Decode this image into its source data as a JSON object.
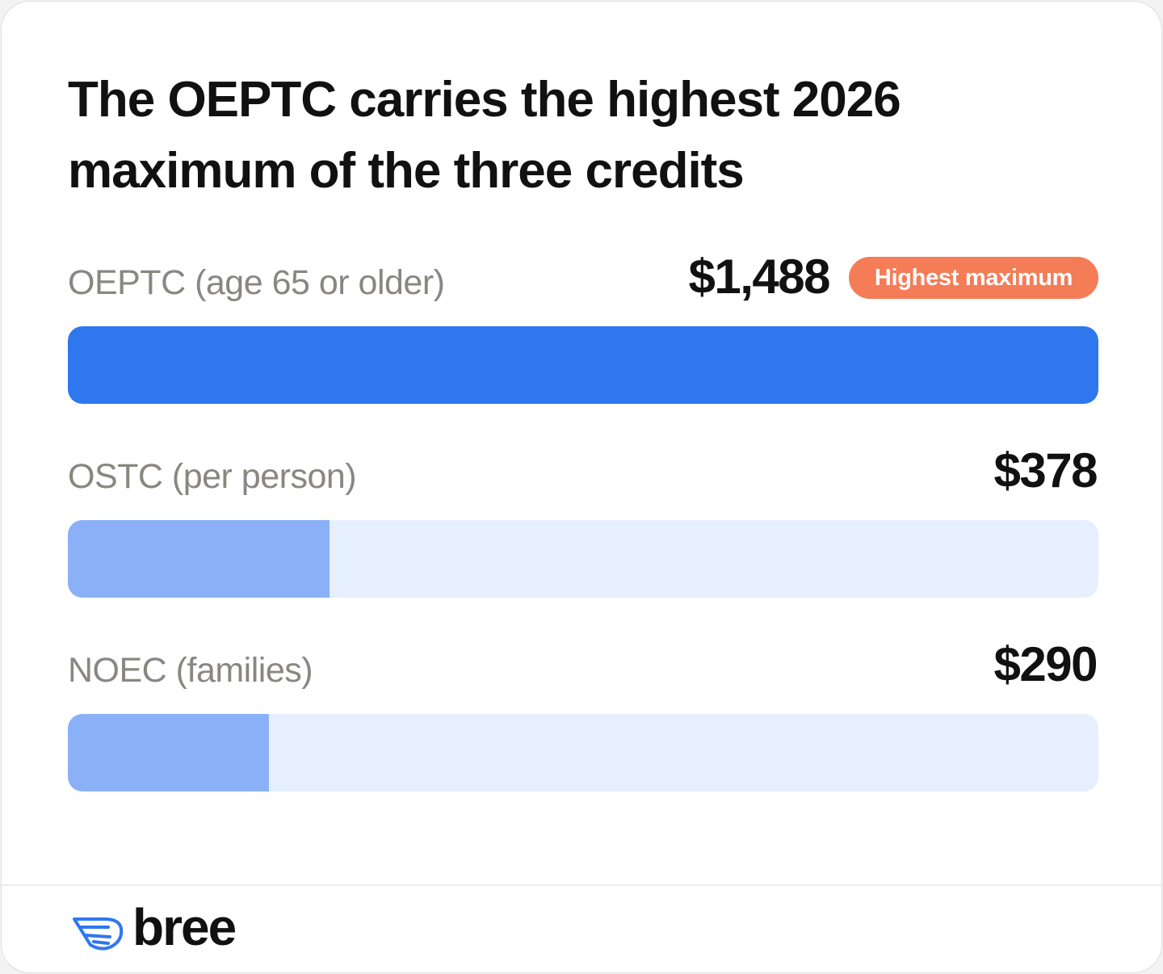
{
  "title": "The OEPTC carries the highest 2026 maximum of the three credits",
  "badge": {
    "label": "Highest maximum",
    "color": "#f47c57"
  },
  "colors": {
    "primary_bar": "#2f77ef",
    "secondary_bar": "#8ab1f7",
    "track": "#e5effd"
  },
  "chart_data": {
    "type": "bar",
    "orientation": "horizontal",
    "title": "The OEPTC carries the highest 2026 maximum of the three credits",
    "categories": [
      "OEPTC (age 65 or older)",
      "OSTC (per person)",
      "NOEC (families)"
    ],
    "values": [
      1488,
      378,
      290
    ],
    "value_labels": [
      "$1,488",
      "$378",
      "$290"
    ],
    "xlim": [
      0,
      1488
    ],
    "grid": false
  },
  "brand": {
    "name": "bree",
    "icon": "wing-logo-icon"
  }
}
